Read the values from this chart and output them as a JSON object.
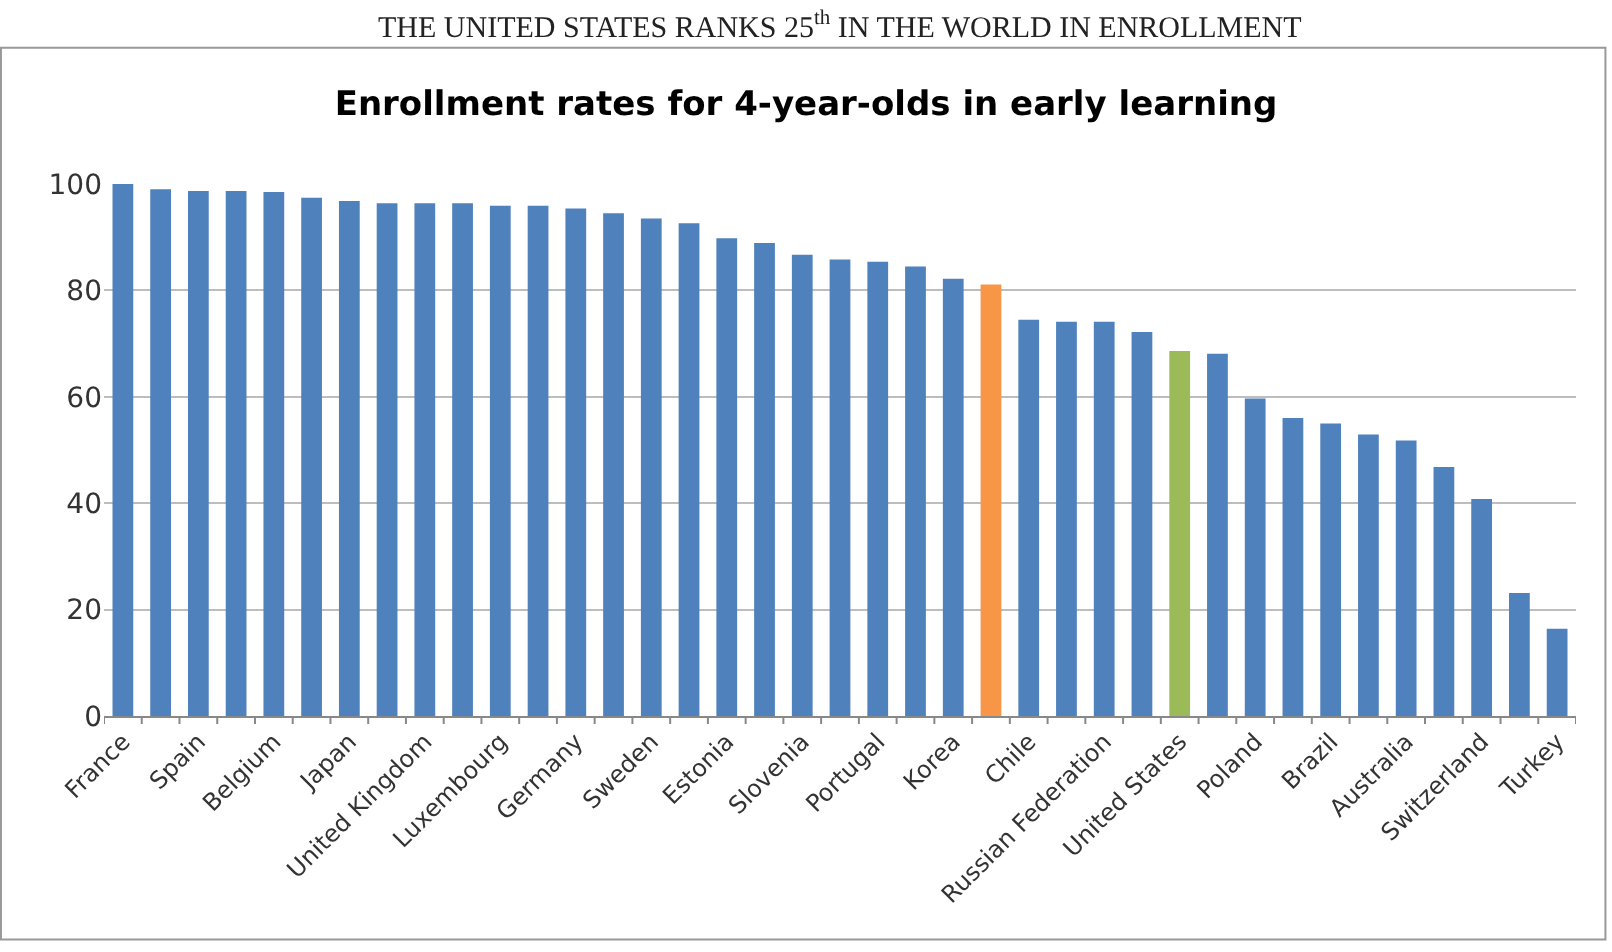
{
  "chart_data": {
    "type": "bar",
    "title": "Enrollment rates for 4-year-olds in early learning",
    "annotations": [
      "THE UNITED STATES RANKS 25$^{th}$ IN THE WORLD IN ENROLLMENT"
    ],
    "categories": [
      "France",
      null,
      "Spain",
      null,
      "Belgium",
      null,
      "Japan",
      null,
      "United Kingdom",
      null,
      "Luxembourg",
      null,
      "Germany",
      null,
      "Sweden",
      null,
      "Estonia",
      null,
      "Slovenia",
      null,
      "Portugal",
      null,
      "Korea",
      null,
      "Chile",
      null,
      "Russian Federation",
      null,
      "United States",
      null,
      "Poland",
      null,
      "Brazil",
      null,
      "Australia",
      null,
      "Switzerland",
      null,
      "Turkey"
    ],
    "values": [
      100,
      99,
      98.7,
      98.7,
      98.5,
      97.4,
      96.8,
      96.4,
      96.4,
      96.4,
      95.9,
      95.9,
      95.4,
      94.5,
      93.5,
      92.6,
      89.8,
      88.9,
      86.7,
      85.8,
      85.4,
      84.5,
      82.2,
      81.1,
      74.5,
      74.1,
      74.1,
      72.2,
      68.6,
      68.1,
      59.7,
      56.0,
      55.0,
      52.9,
      51.8,
      46.8,
      40.8,
      23.1,
      16.4
    ],
    "colors": [
      "#4f81bd",
      "#4f81bd",
      "#4f81bd",
      "#4f81bd",
      "#4f81bd",
      "#4f81bd",
      "#4f81bd",
      "#4f81bd",
      "#4f81bd",
      "#4f81bd",
      "#4f81bd",
      "#4f81bd",
      "#4f81bd",
      "#4f81bd",
      "#4f81bd",
      "#4f81bd",
      "#4f81bd",
      "#4f81bd",
      "#4f81bd",
      "#4f81bd",
      "#4f81bd",
      "#4f81bd",
      "#4f81bd",
      "#f79646",
      "#4f81bd",
      "#4f81bd",
      "#4f81bd",
      "#4f81bd",
      "#9bbb59",
      "#4f81bd",
      "#4f81bd",
      "#4f81bd",
      "#4f81bd",
      "#4f81bd",
      "#4f81bd",
      "#4f81bd",
      "#4f81bd",
      "#4f81bd",
      "#4f81bd"
    ],
    "ylim": [
      0,
      100
    ],
    "yticks": [
      0,
      20,
      40,
      60,
      80,
      100
    ],
    "grid": "y"
  }
}
